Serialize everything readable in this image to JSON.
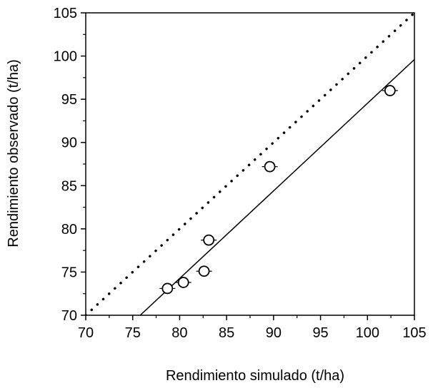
{
  "chart_data": {
    "type": "scatter",
    "xlabel": "Rendimiento simulado (t/ha)",
    "ylabel": "Rendimiento observado (t/ha)",
    "xlim": [
      70,
      105
    ],
    "ylim": [
      70,
      105
    ],
    "xticks": [
      "70",
      "75",
      "80",
      "85",
      "90",
      "95",
      "100",
      "105"
    ],
    "yticks": [
      "70",
      "75",
      "80",
      "85",
      "90",
      "95",
      "100",
      "105"
    ],
    "grid": false,
    "legend": "none",
    "points": [
      {
        "x": 78.7,
        "y": 73.1
      },
      {
        "x": 80.4,
        "y": 73.8
      },
      {
        "x": 82.6,
        "y": 75.1
      },
      {
        "x": 83.1,
        "y": 78.7
      },
      {
        "x": 89.6,
        "y": 87.2
      },
      {
        "x": 102.4,
        "y": 96.0
      }
    ],
    "lines": [
      {
        "kind": "one-to-one",
        "style": "dotted",
        "from": [
          70,
          70
        ],
        "to": [
          105,
          105
        ]
      },
      {
        "kind": "regression",
        "style": "solid",
        "from": [
          75.8,
          70
        ],
        "to": [
          105,
          99.6
        ]
      }
    ]
  }
}
